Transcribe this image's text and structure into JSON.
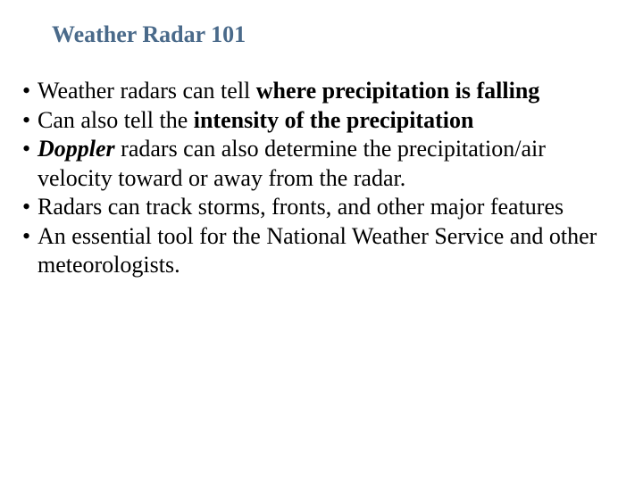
{
  "slide": {
    "title": "Weather Radar 101",
    "title_color": "#4a6a8a",
    "title_fontsize": 26,
    "body_color": "#000000",
    "body_fontsize": 26,
    "background_color": "#ffffff",
    "bullets": [
      {
        "prefix": "Weather radars can tell ",
        "bold1": "where precipitation is falling",
        "suffix": ""
      },
      {
        "prefix": "Can also tell the ",
        "bold1": "intensity of the precipitation",
        "suffix": ""
      },
      {
        "italic_bold": "Doppler",
        "prefix": " radars can also determine the precipitation/air velocity toward or away from the radar.",
        "suffix": ""
      },
      {
        "prefix": "Radars can track storms, fronts, and other major features",
        "suffix": ""
      },
      {
        "prefix": "An essential tool for the National Weather Service and other meteorologists.",
        "suffix": ""
      }
    ]
  }
}
